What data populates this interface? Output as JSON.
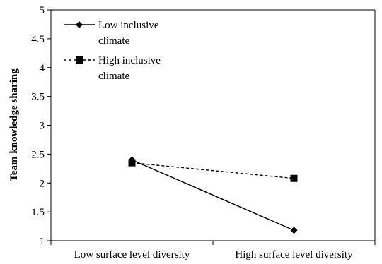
{
  "chart_data": {
    "type": "line",
    "categories": [
      "Low surface level diversity",
      "High surface level diversity"
    ],
    "ylabel": "Team knowledge sharing",
    "xlabel": "",
    "ylim": [
      1,
      5
    ],
    "yticks": [
      "1",
      "1.5",
      "2",
      "2.5",
      "3",
      "3.5",
      "4",
      "4.5",
      "5"
    ],
    "grid": false,
    "legend_position": "top-left",
    "series": [
      {
        "name": "Low inclusive climate",
        "name_lines": [
          "Low inclusive",
          "climate"
        ],
        "values": [
          2.4,
          1.18
        ],
        "style": "solid",
        "marker": "diamond",
        "color": "#000000"
      },
      {
        "name": "High inclusive climate",
        "name_lines": [
          "High inclusive",
          "climate"
        ],
        "values": [
          2.35,
          2.08
        ],
        "style": "dashed",
        "marker": "square",
        "color": "#000000"
      }
    ]
  }
}
